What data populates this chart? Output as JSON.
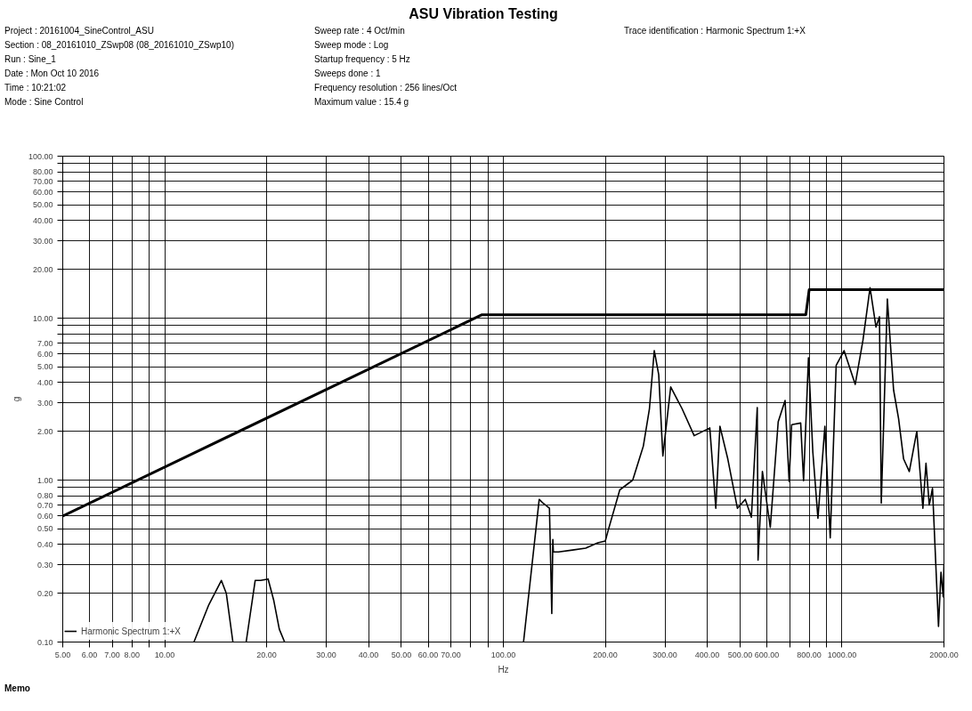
{
  "chart_data": {
    "type": "line",
    "title": "ASU Vibration Testing",
    "xlabel": "Hz",
    "ylabel": "g",
    "log": "xy",
    "grid": true,
    "legend": "bottom left",
    "xlim": [
      5,
      2000
    ],
    "ylim": [
      0.1,
      100
    ],
    "xticks": [
      {
        "value": 5,
        "label": "5.00"
      },
      {
        "value": 6,
        "label": "6.00"
      },
      {
        "value": 7,
        "label": "7.00"
      },
      {
        "value": 8,
        "label": "8.00"
      },
      {
        "value": 9,
        "label": null
      },
      {
        "value": 10,
        "label": "10.00"
      },
      {
        "value": 20,
        "label": "20.00"
      },
      {
        "value": 30,
        "label": "30.00"
      },
      {
        "value": 40,
        "label": "40.00"
      },
      {
        "value": 50,
        "label": "50.00"
      },
      {
        "value": 60,
        "label": "60.00"
      },
      {
        "value": 70,
        "label": "70.00"
      },
      {
        "value": 80,
        "label": null
      },
      {
        "value": 90,
        "label": null
      },
      {
        "value": 100,
        "label": "100.00"
      },
      {
        "value": 200,
        "label": "200.00"
      },
      {
        "value": 300,
        "label": "300.00"
      },
      {
        "value": 400,
        "label": "400.00"
      },
      {
        "value": 500,
        "label": "500.00"
      },
      {
        "value": 600,
        "label": "600.00"
      },
      {
        "value": 700,
        "label": null
      },
      {
        "value": 800,
        "label": "800.00"
      },
      {
        "value": 900,
        "label": null
      },
      {
        "value": 1000,
        "label": "1000.00"
      },
      {
        "value": 2000,
        "label": "2000.00"
      }
    ],
    "yticks": [
      {
        "value": 0.1,
        "label": "0.10"
      },
      {
        "value": 0.2,
        "label": "0.20"
      },
      {
        "value": 0.3,
        "label": "0.30"
      },
      {
        "value": 0.4,
        "label": "0.40"
      },
      {
        "value": 0.5,
        "label": "0.50"
      },
      {
        "value": 0.6,
        "label": "0.60"
      },
      {
        "value": 0.7,
        "label": "0.70"
      },
      {
        "value": 0.8,
        "label": "0.80"
      },
      {
        "value": 0.9,
        "label": null
      },
      {
        "value": 1,
        "label": "1.00"
      },
      {
        "value": 2,
        "label": "2.00"
      },
      {
        "value": 3,
        "label": "3.00"
      },
      {
        "value": 4,
        "label": "4.00"
      },
      {
        "value": 5,
        "label": "5.00"
      },
      {
        "value": 6,
        "label": "6.00"
      },
      {
        "value": 7,
        "label": "7.00"
      },
      {
        "value": 8,
        "label": null
      },
      {
        "value": 9,
        "label": null
      },
      {
        "value": 10,
        "label": "10.00"
      },
      {
        "value": 20,
        "label": "20.00"
      },
      {
        "value": 30,
        "label": "30.00"
      },
      {
        "value": 40,
        "label": "40.00"
      },
      {
        "value": 50,
        "label": "50.00"
      },
      {
        "value": 60,
        "label": "60.00"
      },
      {
        "value": 70,
        "label": "70.00"
      },
      {
        "value": 80,
        "label": "80.00"
      },
      {
        "value": 90,
        "label": null
      },
      {
        "value": 100,
        "label": "100.00"
      }
    ],
    "series": [
      {
        "color": "#000000",
        "x": [
          5,
          86.5,
          782,
          800,
          2000
        ],
        "values": [
          0.6,
          10.5,
          10.5,
          15,
          15
        ]
      },
      {
        "name": "Harmonic Spectrum 1:+X",
        "color": "#000000",
        "x": [
          12.2,
          13.5,
          14.7,
          15.2,
          15.9,
          16.5,
          17.4,
          18.5,
          19.2,
          20.2,
          21.0,
          21.8,
          22.6,
          60,
          114.7,
          127.6,
          131,
          136.8,
          139,
          140,
          140.5,
          145.5,
          160,
          175,
          190,
          200,
          204,
          220.7,
          241,
          259,
          270,
          279,
          287.6,
          295.8,
          312,
          337,
          366,
          407,
          424,
          436,
          460,
          491,
          518,
          540,
          562,
          565,
          582,
          614,
          648,
          679,
          698,
          710,
          755,
          770,
          796,
          820,
          849,
          890,
          923,
          961,
          1014,
          1094,
          1153,
          1210,
          1260,
          1290,
          1306,
          1361,
          1420,
          1469,
          1520,
          1580,
          1663,
          1733,
          1770,
          1810,
          1850,
          1927,
          1960,
          1990,
          2000
        ],
        "values": [
          0.1,
          0.17,
          0.24,
          0.2,
          0.1,
          null,
          0.1,
          0.24,
          0.24,
          0.245,
          0.18,
          0.12,
          0.1,
          null,
          0.1,
          0.76,
          0.72,
          0.67,
          0.15,
          0.43,
          0.36,
          0.36,
          0.37,
          0.38,
          0.41,
          0.42,
          0.49,
          0.87,
          1.0,
          1.62,
          2.76,
          6.3,
          4.47,
          1.41,
          3.76,
          2.76,
          1.88,
          2.1,
          0.67,
          2.15,
          1.35,
          0.67,
          0.76,
          0.59,
          2.8,
          0.32,
          1.13,
          0.51,
          2.29,
          3.1,
          0.98,
          2.2,
          2.25,
          0.99,
          5.7,
          1.49,
          0.58,
          2.15,
          0.44,
          5.1,
          6.3,
          3.9,
          7.3,
          15.4,
          8.8,
          10.2,
          0.72,
          13.1,
          3.6,
          2.4,
          1.35,
          1.13,
          2.0,
          0.67,
          1.27,
          0.7,
          0.89,
          0.125,
          0.27,
          0.19,
          0.3
        ]
      }
    ],
    "annotations": [
      "Project : 20161004_SineControl_ASU",
      "Section : 08_20161010_ZSwp08 (08_20161010_ZSwp10)",
      "Run : Sine_1",
      "Date : Mon Oct 10 2016",
      "Time : 10:21:02",
      "Mode : Sine Control",
      "Sweep rate : 4 Oct/min",
      "Sweep mode : Log",
      "Startup frequency : 5 Hz",
      "Sweeps done : 1",
      "Frequency resolution : 256 lines/Oct",
      "Maximum value : 15.4 g",
      "Trace identification : Harmonic Spectrum 1:+X",
      "Memo"
    ]
  }
}
